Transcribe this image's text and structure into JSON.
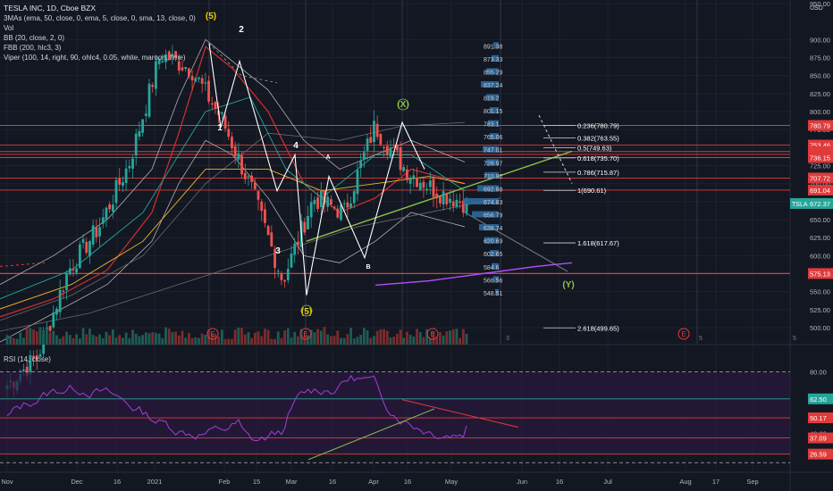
{
  "header": {
    "symbol": "TESLA INC, 1D, Cboe BZX",
    "indicators": [
      "3MAs (ema, 50, close, 0, ema, 5, close, 0, sma, 13, close, 0)",
      "Vol",
      "BB (20, close, 2, 0)",
      "FBB (200, hlc3, 3)",
      "Viper (100, 14, right, 90, ohlc4, 0.05, white, maroon, lime)"
    ],
    "rsi_label": "RSI (14, close)",
    "currency": "USD"
  },
  "price_axis": {
    "ticks": [
      "950.00",
      "900.00",
      "875.00",
      "850.00",
      "825.00",
      "800.00",
      "775.00",
      "750.00",
      "725.00",
      "700.00",
      "675.00",
      "650.00",
      "625.00",
      "600.00",
      "575.00",
      "550.00",
      "525.00",
      "500.00"
    ],
    "tick_values": [
      950,
      900,
      875,
      850,
      825,
      800,
      775,
      750,
      725,
      700,
      675,
      650,
      625,
      600,
      575,
      550,
      525,
      500
    ],
    "labels": [
      {
        "text": "780.79",
        "value": 780.79,
        "color": "#e03b3b"
      },
      {
        "text": "753.46",
        "value": 753.46,
        "color": "#e03b3b"
      },
      {
        "text": "744.52",
        "value": 744.52,
        "color": "#e03b3b"
      },
      {
        "text": "740.56",
        "value": 740.56,
        "color": "#e03b3b"
      },
      {
        "text": "736.15",
        "value": 736.15,
        "color": "#e03b3b"
      },
      {
        "text": "707.72",
        "value": 707.72,
        "color": "#e03b3b"
      },
      {
        "text": "691.04",
        "value": 691.04,
        "color": "#e03b3b"
      },
      {
        "text": "672.37",
        "value": 672.37,
        "color": "#26a69a",
        "prefix": "TSLA"
      },
      {
        "text": "575.13",
        "value": 575.13,
        "color": "#e03b3b"
      }
    ]
  },
  "volume_profile_labels": [
    "891.38",
    "873.33",
    "855.29",
    "837.24",
    "819.2",
    "801.15",
    "783.1",
    "765.06",
    "747.01",
    "728.97",
    "710.92",
    "692.88",
    "674.83",
    "656.79",
    "638.74",
    "620.69",
    "602.65",
    "584.6",
    "566.56",
    "548.51"
  ],
  "fib_levels": [
    {
      "text": "0.236(780.79)",
      "value": 780.79
    },
    {
      "text": "0.382(763.55)",
      "value": 763.55
    },
    {
      "text": "0.5(749.63)",
      "value": 749.63
    },
    {
      "text": "0.618(735.70)",
      "value": 735.7
    },
    {
      "text": "0.786(715.87)",
      "value": 715.87
    },
    {
      "text": "1(690.61)",
      "value": 690.61
    },
    {
      "text": "1.618(617.67)",
      "value": 617.67
    },
    {
      "text": "2.618(499.65)",
      "value": 499.65
    }
  ],
  "wave_labels": [
    "(5)",
    "2",
    "1",
    "4",
    "A",
    "3",
    "B",
    "(5)",
    "(X)",
    "(Y)"
  ],
  "x_axis": [
    "Nov",
    "Dec",
    "16",
    "2021",
    "Feb",
    "15",
    "Mar",
    "16",
    "Apr",
    "16",
    "May",
    "Jun",
    "16",
    "Jul",
    "Aug",
    "17",
    "Sep"
  ],
  "event_markers": [
    "E",
    "E",
    "E",
    "E"
  ],
  "event_counts": [
    "3",
    "5",
    "5"
  ],
  "rsi": {
    "levels": [
      {
        "text": "80.00",
        "value": 80,
        "boxed": false
      },
      {
        "text": "62.50",
        "value": 62.5,
        "color": "#26a69a",
        "boxed": true
      },
      {
        "text": "50.17",
        "value": 50.17,
        "color": "#e03b3b",
        "boxed": true
      },
      {
        "text": "40.00",
        "value": 40,
        "boxed": false
      },
      {
        "text": "37.09",
        "value": 37.09,
        "color": "#e03b3b",
        "boxed": true
      },
      {
        "text": "26.59",
        "value": 26.59,
        "color": "#e03b3b",
        "boxed": true
      }
    ]
  },
  "chart_data": {
    "type": "candlestick",
    "symbol": "TSLA",
    "timeframe": "1D",
    "ylim": [
      490,
      960
    ],
    "dates": [
      "2020-11-02",
      "2020-11-16",
      "2020-12-01",
      "2020-12-16",
      "2021-01-04",
      "2021-01-25",
      "2021-02-01",
      "2021-02-15",
      "2021-03-01",
      "2021-03-08",
      "2021-03-16",
      "2021-04-01",
      "2021-04-14",
      "2021-04-21",
      "2021-05-03",
      "2021-05-07"
    ],
    "close": [
      420,
      460,
      580,
      640,
      730,
      880,
      860,
      790,
      690,
      565,
      680,
      660,
      780,
      720,
      690,
      672.37
    ],
    "last_price": 672.37,
    "rsi_last": 45,
    "color_up": "#26a69a",
    "color_down": "#ef5350"
  }
}
